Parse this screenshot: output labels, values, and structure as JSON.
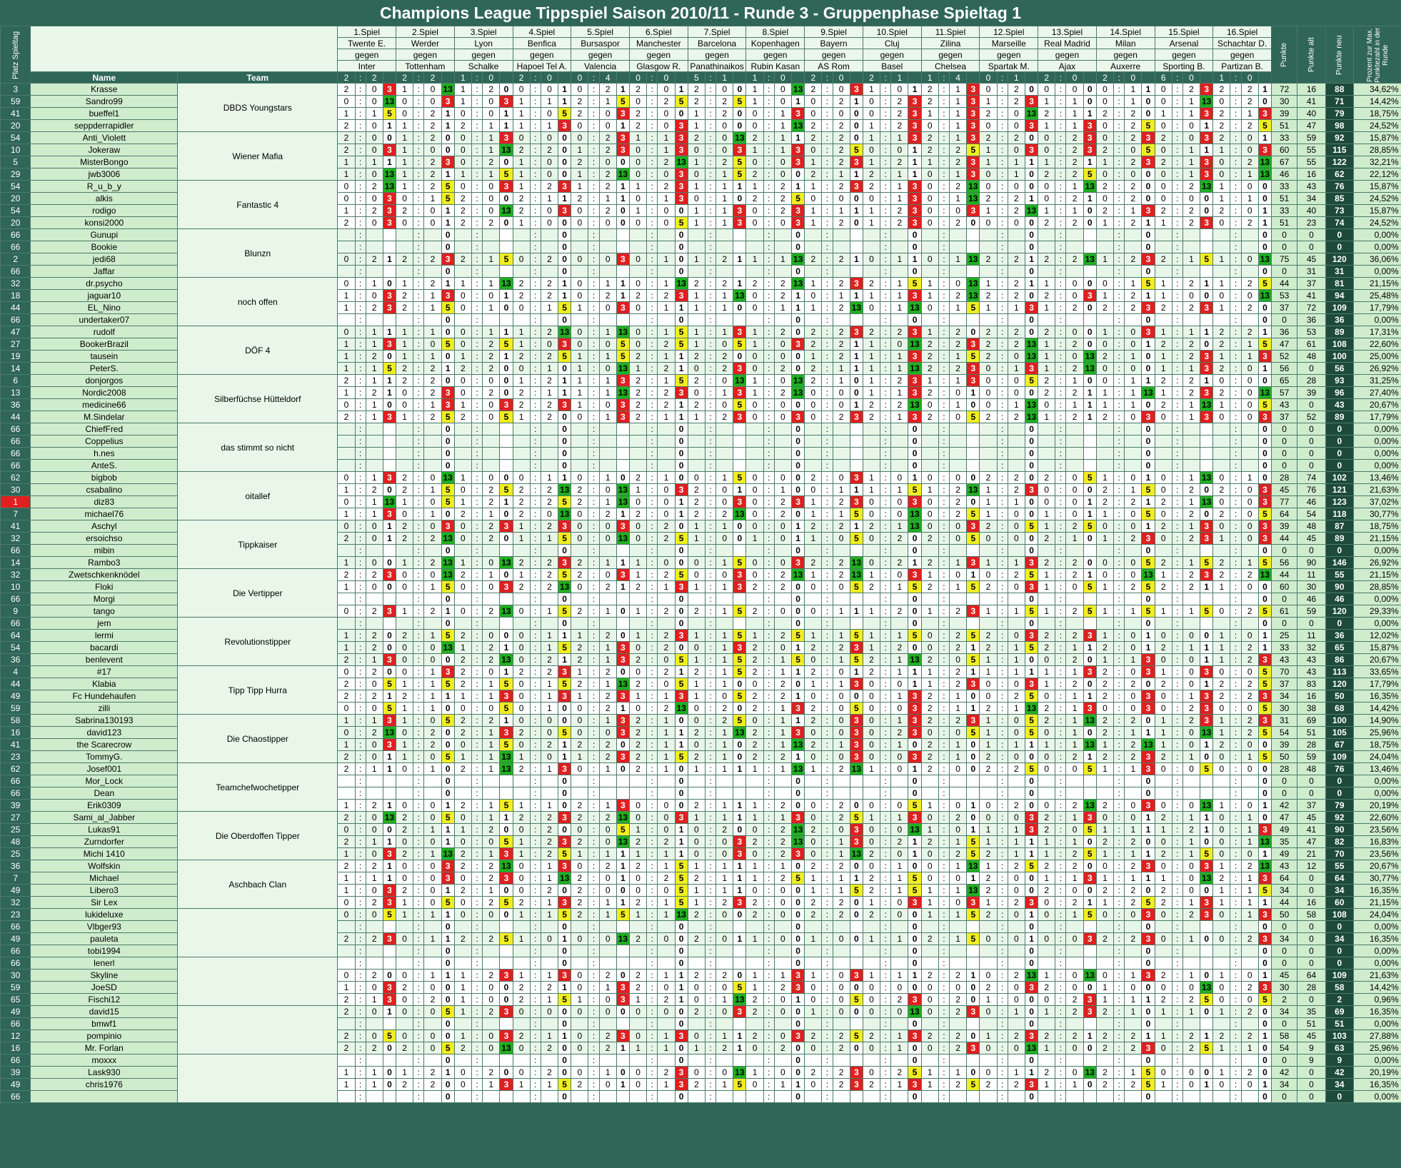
{
  "title": "Champions League Tippspiel Saison 2010/11 - Runde 3 - Gruppenphase Spieltag 1",
  "headers": {
    "platz": "Platz Spieltag",
    "name": "Name",
    "team": "Team",
    "punkte": "Punkte",
    "punkte_alt": "Punkte alt",
    "punkte_neu": "Punkte neu",
    "prozent": "Prozent zur Max. Punktezahl in der Runde"
  },
  "games": [
    {
      "label": "1.Spiel",
      "home": "Twente E.",
      "vs": "gegen",
      "away": "Inter",
      "h": "2",
      "a": "2"
    },
    {
      "label": "2.Spiel",
      "home": "Werder",
      "vs": "gegen",
      "away": "Tottenham",
      "h": "2",
      "a": "2"
    },
    {
      "label": "3.Spiel",
      "home": "Lyon",
      "vs": "gegen",
      "away": "Schalke",
      "h": "1",
      "a": "0"
    },
    {
      "label": "4.Spiel",
      "home": "Benfica",
      "vs": "gegen",
      "away": "Hapoel Tel A.",
      "h": "2",
      "a": "0"
    },
    {
      "label": "5.Spiel",
      "home": "Bursaspor",
      "vs": "gegen",
      "away": "Valencia",
      "h": "0",
      "a": "4"
    },
    {
      "label": "6.Spiel",
      "home": "Manchester",
      "vs": "gegen",
      "away": "Glasgow R.",
      "h": "0",
      "a": "0"
    },
    {
      "label": "7.Spiel",
      "home": "Barcelona",
      "vs": "gegen",
      "away": "Panathinaikos",
      "h": "5",
      "a": "1"
    },
    {
      "label": "8.Spiel",
      "home": "Kopenhagen",
      "vs": "gegen",
      "away": "Rubin Kasan",
      "h": "1",
      "a": "0"
    },
    {
      "label": "9.Spiel",
      "home": "Bayern",
      "vs": "gegen",
      "away": "AS Rom",
      "h": "2",
      "a": "0"
    },
    {
      "label": "10.Spiel",
      "home": "Cluj",
      "vs": "gegen",
      "away": "Basel",
      "h": "2",
      "a": "1"
    },
    {
      "label": "11.Spiel",
      "home": "Zilina",
      "vs": "gegen",
      "away": "Chelsea",
      "h": "1",
      "a": "4"
    },
    {
      "label": "12.Spiel",
      "home": "Marseille",
      "vs": "gegen",
      "away": "Spartak M.",
      "h": "0",
      "a": "1"
    },
    {
      "label": "13.Spiel",
      "home": "Real Madrid",
      "vs": "gegen",
      "away": "Ajax",
      "h": "2",
      "a": "0"
    },
    {
      "label": "14.Spiel",
      "home": "Milan",
      "vs": "gegen",
      "away": "Auxerre",
      "h": "2",
      "a": "0"
    },
    {
      "label": "15.Spiel",
      "home": "Arsenal",
      "vs": "gegen",
      "away": "Sporting B.",
      "h": "6",
      "a": "0"
    },
    {
      "label": "16.Spiel",
      "home": "Schachtar D.",
      "vs": "gegen",
      "away": "Partizan B.",
      "h": "1",
      "a": "0"
    }
  ],
  "teams": [
    {
      "team": "DBDS Youngstars",
      "members": [
        {
          "place": "3",
          "name": "Krasse",
          "pts": "72",
          "alt": "16",
          "neu": "88",
          "pct": "34,62%"
        },
        {
          "place": "59",
          "name": "Sandro99",
          "pts": "30",
          "alt": "41",
          "neu": "71",
          "pct": "14,42%"
        },
        {
          "place": "41",
          "name": "bueffel1",
          "pts": "39",
          "alt": "40",
          "neu": "79",
          "pct": "18,75%"
        },
        {
          "place": "20",
          "name": "seppderrapidler",
          "pts": "51",
          "alt": "47",
          "neu": "98",
          "pct": "24,52%"
        }
      ]
    },
    {
      "team": "Wiener Mafia",
      "members": [
        {
          "place": "54",
          "name": "Anti_Violett",
          "pts": "33",
          "alt": "59",
          "neu": "92",
          "pct": "15,87%"
        },
        {
          "place": "10",
          "name": "Jokeraw",
          "pts": "60",
          "alt": "55",
          "neu": "115",
          "pct": "28,85%"
        },
        {
          "place": "5",
          "name": "MisterBongo",
          "pts": "67",
          "alt": "55",
          "neu": "122",
          "pct": "32,21%"
        },
        {
          "place": "29",
          "name": "jwb3006",
          "pts": "46",
          "alt": "16",
          "neu": "62",
          "pct": "22,12%"
        }
      ]
    },
    {
      "team": "Fantastic 4",
      "members": [
        {
          "place": "54",
          "name": "R_u_b_y",
          "pts": "33",
          "alt": "43",
          "neu": "76",
          "pct": "15,87%"
        },
        {
          "place": "20",
          "name": "alkis",
          "pts": "51",
          "alt": "34",
          "neu": "85",
          "pct": "24,52%"
        },
        {
          "place": "54",
          "name": "rodigo",
          "pts": "33",
          "alt": "40",
          "neu": "73",
          "pct": "15,87%"
        },
        {
          "place": "20",
          "name": "konsi2000",
          "pts": "51",
          "alt": "23",
          "neu": "74",
          "pct": "24,52%"
        }
      ]
    },
    {
      "team": "Blunzn",
      "members": [
        {
          "place": "66",
          "name": "Gunupi",
          "pts": "0",
          "alt": "0",
          "neu": "0",
          "pct": "0,00%"
        },
        {
          "place": "66",
          "name": "Bookie",
          "pts": "0",
          "alt": "0",
          "neu": "0",
          "pct": "0,00%"
        },
        {
          "place": "2",
          "name": "jedi68",
          "pts": "75",
          "alt": "45",
          "neu": "120",
          "pct": "36,06%"
        },
        {
          "place": "66",
          "name": "Jaffar",
          "pts": "0",
          "alt": "31",
          "neu": "31",
          "pct": "0,00%"
        }
      ]
    },
    {
      "team": "noch offen",
      "members": [
        {
          "place": "32",
          "name": "dr.psycho",
          "pts": "44",
          "alt": "37",
          "neu": "81",
          "pct": "21,15%"
        },
        {
          "place": "18",
          "name": "jaguar10",
          "pts": "53",
          "alt": "41",
          "neu": "94",
          "pct": "25,48%"
        },
        {
          "place": "44",
          "name": "EL_Nino",
          "pts": "37",
          "alt": "72",
          "neu": "109",
          "pct": "17,79%"
        },
        {
          "place": "66",
          "name": "undertaker07",
          "pts": "0",
          "alt": "36",
          "neu": "36",
          "pct": "0,00%"
        }
      ]
    },
    {
      "team": "DÖF 4",
      "members": [
        {
          "place": "47",
          "name": "rudolf",
          "pts": "36",
          "alt": "53",
          "neu": "89",
          "pct": "17,31%"
        },
        {
          "place": "27",
          "name": "BookerBrazil",
          "pts": "47",
          "alt": "61",
          "neu": "108",
          "pct": "22,60%"
        },
        {
          "place": "19",
          "name": "tausein",
          "pts": "52",
          "alt": "48",
          "neu": "100",
          "pct": "25,00%"
        },
        {
          "place": "14",
          "name": "PeterS.",
          "pts": "56",
          "alt": "0",
          "neu": "56",
          "pct": "26,92%"
        }
      ]
    },
    {
      "team": "Silberfüchse Hütteldorf",
      "members": [
        {
          "place": "6",
          "name": "donjorgos",
          "pts": "65",
          "alt": "28",
          "neu": "93",
          "pct": "31,25%"
        },
        {
          "place": "13",
          "name": "Nordic2008",
          "pts": "57",
          "alt": "39",
          "neu": "96",
          "pct": "27,40%"
        },
        {
          "place": "36",
          "name": "medicine66",
          "pts": "43",
          "alt": "0",
          "neu": "43",
          "pct": "20,67%"
        },
        {
          "place": "44",
          "name": "M.Sindelar",
          "pts": "37",
          "alt": "52",
          "neu": "89",
          "pct": "17,79%"
        }
      ]
    },
    {
      "team": "das stimmt so nicht",
      "members": [
        {
          "place": "66",
          "name": "ChiefFred",
          "pts": "0",
          "alt": "0",
          "neu": "0",
          "pct": "0,00%"
        },
        {
          "place": "66",
          "name": "Coppelius",
          "pts": "0",
          "alt": "0",
          "neu": "0",
          "pct": "0,00%"
        },
        {
          "place": "66",
          "name": "h.nes",
          "pts": "0",
          "alt": "0",
          "neu": "0",
          "pct": "0,00%"
        },
        {
          "place": "66",
          "name": "AnteS.",
          "pts": "0",
          "alt": "0",
          "neu": "0",
          "pct": "0,00%"
        }
      ]
    },
    {
      "team": "oitallef",
      "members": [
        {
          "place": "62",
          "name": "bigbob",
          "pts": "28",
          "alt": "74",
          "neu": "102",
          "pct": "13,46%"
        },
        {
          "place": "30",
          "name": "csabalino",
          "pts": "45",
          "alt": "76",
          "neu": "121",
          "pct": "21,63%"
        },
        {
          "place": "1",
          "name": "diz83",
          "pts": "77",
          "alt": "46",
          "neu": "123",
          "pct": "37,02%",
          "hot": true
        },
        {
          "place": "7",
          "name": "michael76",
          "pts": "64",
          "alt": "54",
          "neu": "118",
          "pct": "30,77%"
        }
      ]
    },
    {
      "team": "Tippkaiser",
      "members": [
        {
          "place": "41",
          "name": "Aschyl",
          "pts": "39",
          "alt": "48",
          "neu": "87",
          "pct": "18,75%"
        },
        {
          "place": "32",
          "name": "ersoichso",
          "pts": "44",
          "alt": "45",
          "neu": "89",
          "pct": "21,15%"
        },
        {
          "place": "66",
          "name": "mibin",
          "pts": "0",
          "alt": "0",
          "neu": "0",
          "pct": "0,00%"
        },
        {
          "place": "14",
          "name": "Rambo3",
          "pts": "56",
          "alt": "90",
          "neu": "146",
          "pct": "26,92%"
        }
      ]
    },
    {
      "team": "Die Vertipper",
      "members": [
        {
          "place": "32",
          "name": "Zwetschkenknödel",
          "pts": "44",
          "alt": "11",
          "neu": "55",
          "pct": "21,15%"
        },
        {
          "place": "10",
          "name": "Floki",
          "pts": "60",
          "alt": "30",
          "neu": "90",
          "pct": "28,85%"
        },
        {
          "place": "66",
          "name": "Morgi",
          "pts": "0",
          "alt": "46",
          "neu": "46",
          "pct": "0,00%"
        },
        {
          "place": "9",
          "name": "tango",
          "pts": "61",
          "alt": "59",
          "neu": "120",
          "pct": "29,33%"
        }
      ]
    },
    {
      "team": "Revolutionstipper",
      "members": [
        {
          "place": "66",
          "name": "jem",
          "pts": "0",
          "alt": "0",
          "neu": "0",
          "pct": "0,00%"
        },
        {
          "place": "64",
          "name": "lermi",
          "pts": "25",
          "alt": "11",
          "neu": "36",
          "pct": "12,02%"
        },
        {
          "place": "54",
          "name": "bacardi",
          "pts": "33",
          "alt": "32",
          "neu": "65",
          "pct": "15,87%"
        },
        {
          "place": "36",
          "name": "benlevent",
          "pts": "43",
          "alt": "43",
          "neu": "86",
          "pct": "20,67%"
        }
      ]
    },
    {
      "team": "Tipp Tipp Hurra",
      "members": [
        {
          "place": "4",
          "name": "#17",
          "pts": "70",
          "alt": "43",
          "neu": "113",
          "pct": "33,65%"
        },
        {
          "place": "44",
          "name": "Klabia",
          "pts": "37",
          "alt": "83",
          "neu": "120",
          "pct": "17,79%"
        },
        {
          "place": "49",
          "name": "Fc Hundehaufen",
          "pts": "34",
          "alt": "16",
          "neu": "50",
          "pct": "16,35%"
        },
        {
          "place": "59",
          "name": "zilli",
          "pts": "30",
          "alt": "38",
          "neu": "68",
          "pct": "14,42%"
        }
      ]
    },
    {
      "team": "Die Chaostipper",
      "members": [
        {
          "place": "58",
          "name": "Sabrina130193",
          "pts": "31",
          "alt": "69",
          "neu": "100",
          "pct": "14,90%"
        },
        {
          "place": "16",
          "name": "david123",
          "pts": "54",
          "alt": "51",
          "neu": "105",
          "pct": "25,96%"
        },
        {
          "place": "41",
          "name": "the Scarecrow",
          "pts": "39",
          "alt": "28",
          "neu": "67",
          "pct": "18,75%"
        },
        {
          "place": "23",
          "name": "TommyG.",
          "pts": "50",
          "alt": "59",
          "neu": "109",
          "pct": "24,04%"
        }
      ]
    },
    {
      "team": "Teamchefwochetipper",
      "members": [
        {
          "place": "62",
          "name": "Josef001",
          "pts": "28",
          "alt": "48",
          "neu": "76",
          "pct": "13,46%"
        },
        {
          "place": "66",
          "name": "Mor_Lock",
          "pts": "0",
          "alt": "0",
          "neu": "0",
          "pct": "0,00%"
        },
        {
          "place": "66",
          "name": "Dean",
          "pts": "0",
          "alt": "0",
          "neu": "0",
          "pct": "0,00%"
        },
        {
          "place": "39",
          "name": "Erik0309",
          "pts": "42",
          "alt": "37",
          "neu": "79",
          "pct": "20,19%"
        }
      ]
    },
    {
      "team": "Die Oberdoffen Tipper",
      "members": [
        {
          "place": "27",
          "name": "Sami_al_Jabber",
          "pts": "47",
          "alt": "45",
          "neu": "92",
          "pct": "22,60%"
        },
        {
          "place": "25",
          "name": "Lukas91",
          "pts": "49",
          "alt": "41",
          "neu": "90",
          "pct": "23,56%"
        },
        {
          "place": "48",
          "name": "Zurndorfer",
          "pts": "35",
          "alt": "47",
          "neu": "82",
          "pct": "16,83%"
        },
        {
          "place": "25",
          "name": "Michi 1410",
          "pts": "49",
          "alt": "21",
          "neu": "70",
          "pct": "23,56%"
        }
      ]
    },
    {
      "team": "Aschbach Clan",
      "members": [
        {
          "place": "36",
          "name": "Wolfskin",
          "pts": "43",
          "alt": "12",
          "neu": "55",
          "pct": "20,67%"
        },
        {
          "place": "7",
          "name": "Michael",
          "pts": "64",
          "alt": "0",
          "neu": "64",
          "pct": "30,77%"
        },
        {
          "place": "49",
          "name": "Libero3",
          "pts": "34",
          "alt": "0",
          "neu": "34",
          "pct": "16,35%"
        },
        {
          "place": "32",
          "name": "Sir Lex",
          "pts": "44",
          "alt": "16",
          "neu": "60",
          "pct": "21,15%"
        }
      ]
    },
    {
      "team": "",
      "members": [
        {
          "place": "23",
          "name": "lukideluxe",
          "pts": "50",
          "alt": "58",
          "neu": "108",
          "pct": "24,04%"
        },
        {
          "place": "66",
          "name": "Vlbger93",
          "pts": "0",
          "alt": "0",
          "neu": "0",
          "pct": "0,00%"
        },
        {
          "place": "49",
          "name": "pauleta",
          "pts": "34",
          "alt": "0",
          "neu": "34",
          "pct": "16,35%"
        },
        {
          "place": "66",
          "name": "tobi1994",
          "pts": "0",
          "alt": "0",
          "neu": "0",
          "pct": "0,00%"
        }
      ]
    },
    {
      "team": "",
      "members": [
        {
          "place": "66",
          "name": "lenerl",
          "pts": "0",
          "alt": "0",
          "neu": "0",
          "pct": "0,00%"
        },
        {
          "place": "30",
          "name": "Skyline",
          "pts": "45",
          "alt": "64",
          "neu": "109",
          "pct": "21,63%"
        },
        {
          "place": "59",
          "name": "JoeSD",
          "pts": "30",
          "alt": "28",
          "neu": "58",
          "pct": "14,42%"
        },
        {
          "place": "65",
          "name": "Fischi12",
          "pts": "2",
          "alt": "0",
          "neu": "2",
          "pct": "0,96%"
        }
      ]
    },
    {
      "team": "",
      "members": [
        {
          "place": "49",
          "name": "david15",
          "pts": "34",
          "alt": "35",
          "neu": "69",
          "pct": "16,35%"
        },
        {
          "place": "66",
          "name": "bmwf1",
          "pts": "0",
          "alt": "51",
          "neu": "51",
          "pct": "0,00%"
        },
        {
          "place": "12",
          "name": "pompinio",
          "pts": "58",
          "alt": "45",
          "neu": "103",
          "pct": "27,88%"
        },
        {
          "place": "16",
          "name": "Mr. Forlan",
          "pts": "54",
          "alt": "9",
          "neu": "63",
          "pct": "25,96%"
        }
      ]
    },
    {
      "team": "",
      "members": [
        {
          "place": "66",
          "name": "moxxx",
          "pts": "0",
          "alt": "9",
          "neu": "9",
          "pct": "0,00%"
        },
        {
          "place": "39",
          "name": "Lask930",
          "pts": "42",
          "alt": "0",
          "neu": "42",
          "pct": "20,19%"
        },
        {
          "place": "49",
          "name": "chris1976",
          "pts": "34",
          "alt": "0",
          "neu": "34",
          "pct": "16,35%"
        },
        {
          "place": "66",
          "name": "",
          "pts": "0",
          "alt": "0",
          "neu": "0",
          "pct": "0,00%"
        }
      ]
    }
  ],
  "colors": {
    "bg": "#2f6657",
    "exact": "#1fb01f",
    "diff": "#f2ee20",
    "tendency": "#e02020",
    "name_bg": "#cfeccd"
  }
}
